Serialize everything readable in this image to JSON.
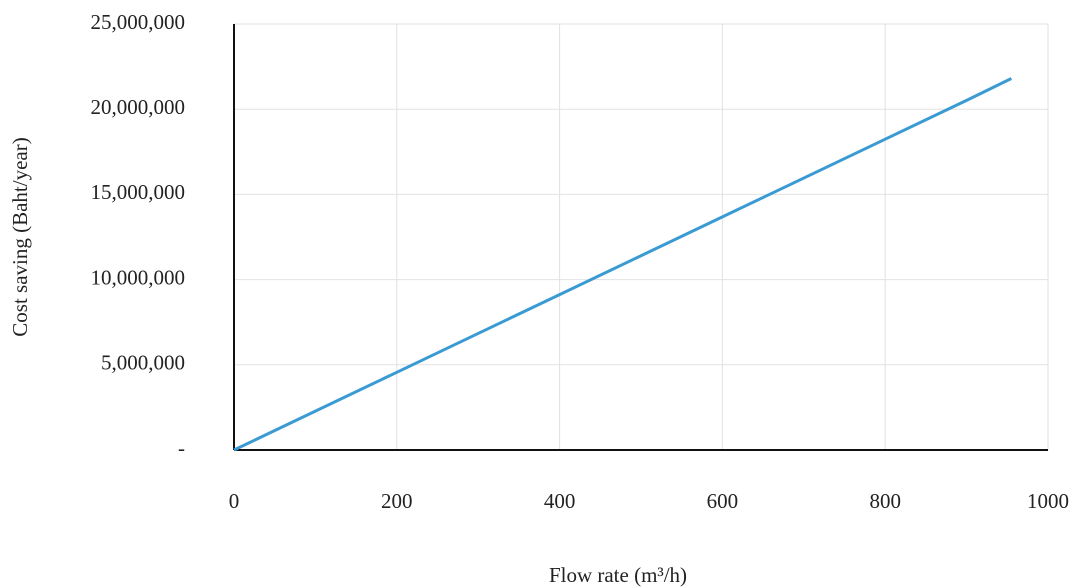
{
  "chart_data": {
    "type": "line",
    "x_label": "Flow rate (m³/h)",
    "y_label": "Cost saving (Baht/year)",
    "xlim": [
      0,
      1000
    ],
    "xticks": [
      0,
      200,
      400,
      600,
      800,
      1000
    ],
    "ylim": [
      0,
      25000000
    ],
    "yticks": [
      {
        "value": 0,
        "label": "-"
      },
      {
        "value": 5000000,
        "label": "5,000,000"
      },
      {
        "value": 10000000,
        "label": "10,000,000"
      },
      {
        "value": 15000000,
        "label": "15,000,000"
      },
      {
        "value": 20000000,
        "label": "20,000,000"
      },
      {
        "value": 25000000,
        "label": "25,000,000"
      }
    ],
    "grid": true,
    "x": [
      0,
      100,
      200,
      300,
      400,
      500,
      600,
      700,
      800,
      900,
      955
    ],
    "series": [
      {
        "color": "#3a9ad3",
        "values": [
          0,
          2280000,
          4560000,
          6840000,
          9120000,
          11400000,
          13680000,
          15960000,
          18240000,
          20520000,
          21800000
        ]
      }
    ]
  }
}
